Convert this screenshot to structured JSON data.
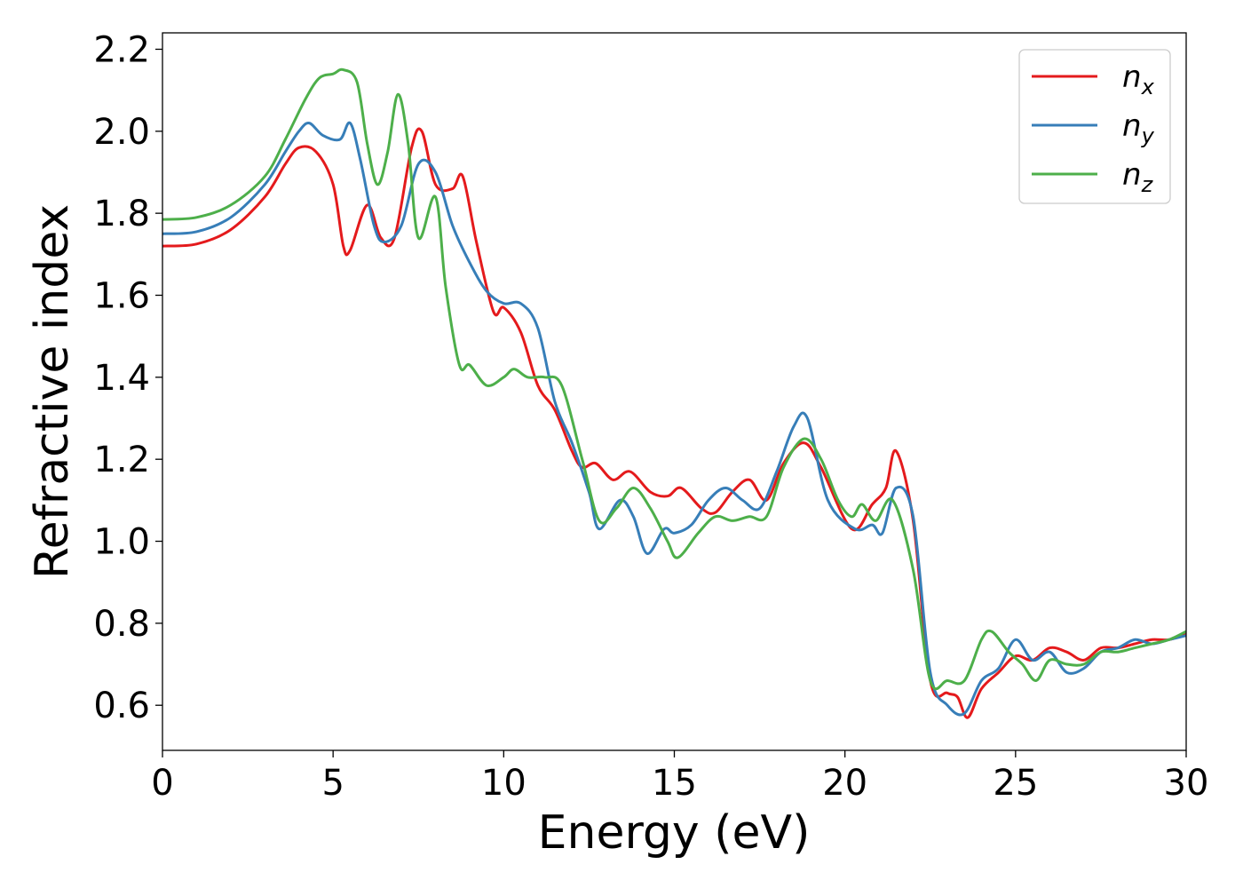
{
  "chart_data": {
    "type": "line",
    "xlabel": "Energy (eV)",
    "ylabel": "Refractive index",
    "xlim": [
      0,
      30
    ],
    "ylim": [
      0.49,
      2.24
    ],
    "xticks": [
      "0",
      "5",
      "10",
      "15",
      "20",
      "25",
      "30"
    ],
    "yticks": [
      "0.6",
      "0.8",
      "1.0",
      "1.2",
      "1.4",
      "1.6",
      "1.8",
      "2.0",
      "2.2"
    ],
    "legend_position": "top-right",
    "grid": false,
    "series": [
      {
        "name": "n_x",
        "legend_base": "n",
        "legend_sub": "x",
        "color": "#e41a1c",
        "points": [
          [
            0,
            1.72
          ],
          [
            1,
            1.725
          ],
          [
            2,
            1.76
          ],
          [
            3,
            1.84
          ],
          [
            3.6,
            1.92
          ],
          [
            4,
            1.96
          ],
          [
            4.5,
            1.95
          ],
          [
            5,
            1.87
          ],
          [
            5.3,
            1.72
          ],
          [
            5.5,
            1.71
          ],
          [
            6,
            1.82
          ],
          [
            6.4,
            1.74
          ],
          [
            6.8,
            1.74
          ],
          [
            7.3,
            1.96
          ],
          [
            7.6,
            2.0
          ],
          [
            8,
            1.87
          ],
          [
            8.5,
            1.86
          ],
          [
            8.8,
            1.89
          ],
          [
            9.2,
            1.73
          ],
          [
            9.7,
            1.56
          ],
          [
            10,
            1.57
          ],
          [
            10.5,
            1.51
          ],
          [
            11,
            1.38
          ],
          [
            11.5,
            1.32
          ],
          [
            12,
            1.22
          ],
          [
            12.3,
            1.18
          ],
          [
            12.7,
            1.19
          ],
          [
            13.2,
            1.15
          ],
          [
            13.7,
            1.17
          ],
          [
            14.3,
            1.12
          ],
          [
            14.8,
            1.11
          ],
          [
            15.2,
            1.13
          ],
          [
            15.8,
            1.08
          ],
          [
            16.2,
            1.07
          ],
          [
            16.7,
            1.12
          ],
          [
            17.2,
            1.15
          ],
          [
            17.7,
            1.1
          ],
          [
            18.2,
            1.19
          ],
          [
            18.8,
            1.24
          ],
          [
            19.3,
            1.18
          ],
          [
            20.2,
            1.03
          ],
          [
            20.8,
            1.09
          ],
          [
            21.2,
            1.13
          ],
          [
            21.5,
            1.22
          ],
          [
            22,
            1.05
          ],
          [
            22.5,
            0.66
          ],
          [
            23,
            0.63
          ],
          [
            23.3,
            0.62
          ],
          [
            23.6,
            0.57
          ],
          [
            24,
            0.64
          ],
          [
            24.5,
            0.68
          ],
          [
            25,
            0.72
          ],
          [
            25.5,
            0.71
          ],
          [
            26,
            0.74
          ],
          [
            26.5,
            0.73
          ],
          [
            27,
            0.71
          ],
          [
            27.5,
            0.74
          ],
          [
            28,
            0.74
          ],
          [
            28.5,
            0.75
          ],
          [
            29,
            0.76
          ],
          [
            29.5,
            0.76
          ],
          [
            30,
            0.775
          ]
        ]
      },
      {
        "name": "n_y",
        "legend_base": "n",
        "legend_sub": "y",
        "color": "#377eb8",
        "points": [
          [
            0,
            1.75
          ],
          [
            1,
            1.755
          ],
          [
            2,
            1.79
          ],
          [
            3,
            1.87
          ],
          [
            3.6,
            1.95
          ],
          [
            4,
            2.0
          ],
          [
            4.3,
            2.02
          ],
          [
            4.7,
            1.99
          ],
          [
            5.2,
            1.98
          ],
          [
            5.5,
            2.02
          ],
          [
            5.8,
            1.93
          ],
          [
            6.2,
            1.77
          ],
          [
            6.5,
            1.73
          ],
          [
            7,
            1.77
          ],
          [
            7.5,
            1.92
          ],
          [
            8,
            1.9
          ],
          [
            8.5,
            1.77
          ],
          [
            9,
            1.68
          ],
          [
            9.5,
            1.61
          ],
          [
            10,
            1.58
          ],
          [
            10.5,
            1.58
          ],
          [
            11,
            1.52
          ],
          [
            11.5,
            1.34
          ],
          [
            12,
            1.24
          ],
          [
            12.5,
            1.12
          ],
          [
            12.8,
            1.03
          ],
          [
            13.4,
            1.1
          ],
          [
            13.8,
            1.06
          ],
          [
            14.2,
            0.97
          ],
          [
            14.7,
            1.03
          ],
          [
            15,
            1.02
          ],
          [
            15.5,
            1.04
          ],
          [
            16,
            1.1
          ],
          [
            16.5,
            1.13
          ],
          [
            17,
            1.1
          ],
          [
            17.5,
            1.08
          ],
          [
            18,
            1.17
          ],
          [
            18.5,
            1.28
          ],
          [
            18.9,
            1.3
          ],
          [
            19.5,
            1.1
          ],
          [
            20.3,
            1.03
          ],
          [
            20.8,
            1.04
          ],
          [
            21.1,
            1.02
          ],
          [
            21.5,
            1.13
          ],
          [
            22,
            1.06
          ],
          [
            22.5,
            0.68
          ],
          [
            23,
            0.6
          ],
          [
            23.5,
            0.58
          ],
          [
            24,
            0.66
          ],
          [
            24.5,
            0.69
          ],
          [
            25,
            0.76
          ],
          [
            25.5,
            0.71
          ],
          [
            26,
            0.73
          ],
          [
            26.5,
            0.68
          ],
          [
            27,
            0.69
          ],
          [
            27.5,
            0.73
          ],
          [
            28,
            0.74
          ],
          [
            28.5,
            0.76
          ],
          [
            29,
            0.75
          ],
          [
            29.5,
            0.76
          ],
          [
            30,
            0.77
          ]
        ]
      },
      {
        "name": "n_z",
        "legend_base": "n",
        "legend_sub": "z",
        "color": "#4daf4a",
        "points": [
          [
            0,
            1.785
          ],
          [
            1,
            1.79
          ],
          [
            2,
            1.82
          ],
          [
            3,
            1.89
          ],
          [
            3.6,
            1.98
          ],
          [
            4.2,
            2.08
          ],
          [
            4.6,
            2.13
          ],
          [
            5,
            2.14
          ],
          [
            5.3,
            2.15
          ],
          [
            5.7,
            2.12
          ],
          [
            6,
            1.97
          ],
          [
            6.3,
            1.87
          ],
          [
            6.6,
            1.95
          ],
          [
            6.9,
            2.09
          ],
          [
            7.2,
            1.97
          ],
          [
            7.5,
            1.74
          ],
          [
            8,
            1.84
          ],
          [
            8.3,
            1.62
          ],
          [
            8.7,
            1.43
          ],
          [
            9,
            1.43
          ],
          [
            9.5,
            1.38
          ],
          [
            10,
            1.4
          ],
          [
            10.3,
            1.42
          ],
          [
            10.7,
            1.4
          ],
          [
            11.2,
            1.4
          ],
          [
            11.7,
            1.38
          ],
          [
            12.3,
            1.2
          ],
          [
            12.8,
            1.05
          ],
          [
            13.3,
            1.08
          ],
          [
            13.8,
            1.13
          ],
          [
            14.3,
            1.08
          ],
          [
            14.8,
            1.0
          ],
          [
            15.1,
            0.96
          ],
          [
            15.7,
            1.02
          ],
          [
            16.2,
            1.06
          ],
          [
            16.7,
            1.05
          ],
          [
            17.2,
            1.06
          ],
          [
            17.7,
            1.06
          ],
          [
            18.2,
            1.18
          ],
          [
            18.8,
            1.25
          ],
          [
            19.3,
            1.2
          ],
          [
            19.8,
            1.1
          ],
          [
            20.2,
            1.06
          ],
          [
            20.5,
            1.09
          ],
          [
            20.9,
            1.05
          ],
          [
            21.4,
            1.1
          ],
          [
            22,
            0.93
          ],
          [
            22.5,
            0.66
          ],
          [
            23,
            0.66
          ],
          [
            23.5,
            0.66
          ],
          [
            24,
            0.76
          ],
          [
            24.3,
            0.78
          ],
          [
            24.8,
            0.73
          ],
          [
            25.2,
            0.7
          ],
          [
            25.6,
            0.66
          ],
          [
            26,
            0.71
          ],
          [
            26.5,
            0.7
          ],
          [
            27,
            0.7
          ],
          [
            27.5,
            0.73
          ],
          [
            28,
            0.73
          ],
          [
            28.5,
            0.74
          ],
          [
            29,
            0.75
          ],
          [
            29.5,
            0.76
          ],
          [
            30,
            0.78
          ]
        ]
      }
    ]
  }
}
